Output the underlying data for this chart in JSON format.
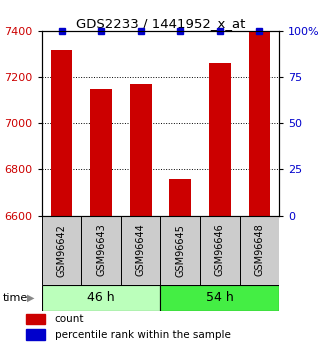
{
  "title": "GDS2233 / 1441952_x_at",
  "categories": [
    "GSM96642",
    "GSM96643",
    "GSM96644",
    "GSM96645",
    "GSM96646",
    "GSM96648"
  ],
  "count_values": [
    7320,
    7150,
    7170,
    6760,
    7260,
    7400
  ],
  "percentile_values": [
    100,
    100,
    100,
    100,
    100,
    100
  ],
  "ylim_left": [
    6600,
    7400
  ],
  "ylim_right": [
    0,
    100
  ],
  "yticks_left": [
    6600,
    6800,
    7000,
    7200,
    7400
  ],
  "yticks_right": [
    0,
    25,
    50,
    75,
    100
  ],
  "bar_color": "#cc0000",
  "dot_color": "#0000cc",
  "group1": {
    "label": "46 h",
    "color": "#bbffbb"
  },
  "group2": {
    "label": "54 h",
    "color": "#44ee44"
  },
  "time_label": "time",
  "legend_count": "count",
  "legend_percentile": "percentile rank within the sample",
  "left_axis_color": "#cc0000",
  "right_axis_color": "#0000cc"
}
